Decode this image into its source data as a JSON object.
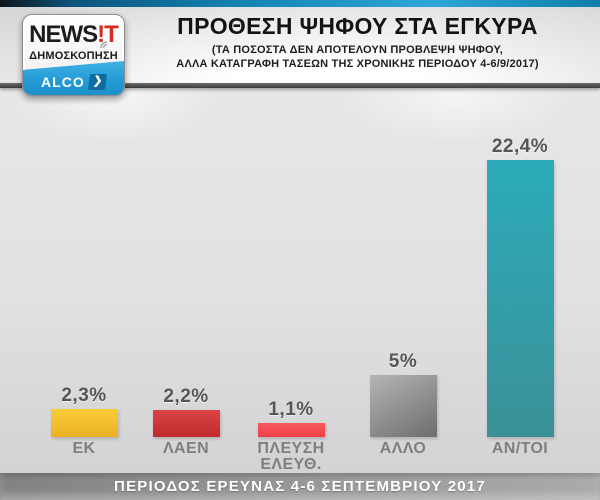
{
  "header": {
    "title": "ΠΡΟΘΕΣΗ ΨΗΦΟΥ ΣΤΑ ΕΓΚΥΡΑ",
    "subtitle_line1": "(ΤΑ ΠΟΣΟΣΤΑ ΔΕΝ ΑΠΟΤΕΛΟΥΝ ΠΡΟΒΛΕΨΗ ΨΗΦΟΥ,",
    "subtitle_line2": "ΑΛΛΑ ΚΑΤΑΓΡΑΦΗ ΤΑΣΕΩΝ ΤΗΣ ΧΡΟΝΙΚΗΣ ΠΕΡΙΟΔΟΥ 4-6/9/2017)",
    "logo": {
      "brand_black": "NEWS",
      "brand_red": "!T",
      "subtitle": "ΔΗΜΟΣΚΟΠΗΣΗ",
      "badge": "ALCO",
      "chevron": "❯"
    }
  },
  "chart_data": {
    "type": "bar",
    "title": "ΠΡΟΘΕΣΗ ΨΗΦΟΥ ΣΤΑ ΕΓΚΥΡΑ",
    "categories": [
      "ΕΚ",
      "ΛΑΕΝ",
      "ΠΛΕΥΣΗ ΕΛΕΥΘ.",
      "ΑΛΛΟ",
      "ΑΝ/ΤΟΙ"
    ],
    "values": [
      2.3,
      2.2,
      1.1,
      5,
      22.4
    ],
    "value_labels": [
      "2,3%",
      "2,2%",
      "1,1%",
      "5%",
      "22,4%"
    ],
    "series_colors": [
      {
        "top": "#f9cc39",
        "bottom": "#edb124",
        "angle": 180
      },
      {
        "top": "#d94447",
        "bottom": "#c22a2d",
        "angle": 180
      },
      {
        "top": "#f6595f",
        "bottom": "#ee4046",
        "angle": 180
      },
      {
        "top": "#b5b5b5",
        "bottom": "#6d6d6d",
        "angle": 150
      },
      {
        "top": "#2cacba",
        "bottom": "#3a9097",
        "angle": 180
      }
    ],
    "xlabel": "",
    "ylabel": "",
    "ylim": [
      0,
      24
    ],
    "grid": false,
    "legend": false
  },
  "footer": {
    "text": "ΠΕΡΙΟΔΟΣ ΕΡΕΥΝΑΣ 4-6 ΣΕΠΤΕΜΒΡΙΟΥ 2017"
  },
  "colors": {
    "accent_blue": "#1e97d2",
    "top_bar_blue": "#1284b2",
    "value_label": "#565656",
    "category_label": "#7f7f7f",
    "footer_bg": "#989898"
  }
}
